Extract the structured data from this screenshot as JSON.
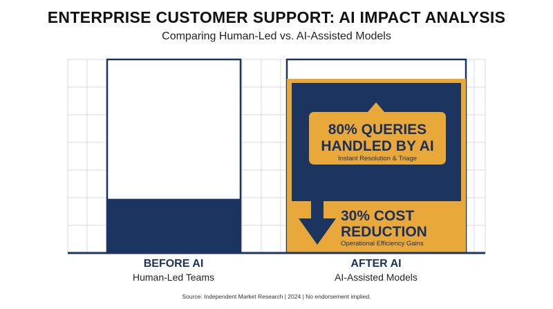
{
  "colors": {
    "navy": "#1b3460",
    "gold": "#e8a83a",
    "grid": "#d9d9d9",
    "axis": "#1b3460"
  },
  "header": {
    "title": "ENTERPRISE CUSTOMER SUPPORT: AI IMPACT ANALYSIS",
    "subtitle": "Comparing Human-Led vs. AI-Assisted Models"
  },
  "footer": {
    "source": "Source: Independent Market Research | 2024 | No endorsement implied."
  },
  "chart_data": {
    "type": "bar",
    "categories": [
      "BEFORE AI",
      "AFTER AI"
    ],
    "category_subtitles": [
      "Human-Led Teams",
      "AI-Assisted Models"
    ],
    "series": [
      {
        "values": [
          100,
          90
        ]
      },
      {
        "values": [
          28,
          80
        ]
      }
    ],
    "annotations": [
      {
        "category": "AFTER AI",
        "lines": [
          "80% QUERIES",
          "HANDLED BY AI"
        ],
        "sub": "Instant Resolution & Triage",
        "icon": "up-arrow-icon"
      },
      {
        "category": "AFTER AI",
        "lines": [
          "30% COST",
          "REDUCTION"
        ],
        "sub": "Operational Efficiency Gains",
        "icon": "down-arrow-icon"
      }
    ],
    "ylim": [
      0,
      100
    ],
    "grid": true,
    "legend": "none"
  }
}
